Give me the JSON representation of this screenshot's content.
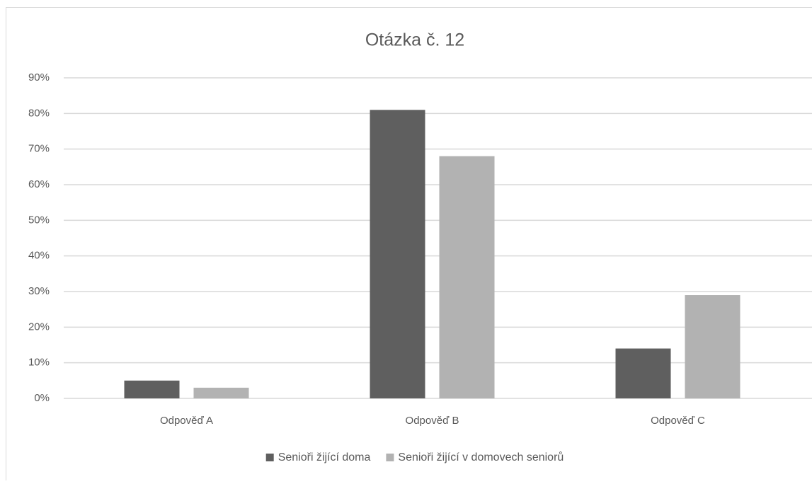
{
  "chart_data": {
    "type": "bar",
    "title": "Otázka č. 12",
    "categories": [
      "Odpověď A",
      "Odpověď B",
      "Odpověď C"
    ],
    "series": [
      {
        "name": "Senioři žijící doma",
        "color": "#5f5f5f",
        "values": [
          5,
          81,
          14
        ]
      },
      {
        "name": "Senioři žijící v domovech seniorů",
        "color": "#b2b2b2",
        "values": [
          3,
          68,
          29
        ]
      }
    ],
    "ylim": [
      0,
      90
    ],
    "yticks": [
      {
        "value": 0,
        "label": "0%"
      },
      {
        "value": 10,
        "label": "10%"
      },
      {
        "value": 20,
        "label": "20%"
      },
      {
        "value": 30,
        "label": "30%"
      },
      {
        "value": 40,
        "label": "40%"
      },
      {
        "value": 50,
        "label": "50%"
      },
      {
        "value": 60,
        "label": "60%"
      },
      {
        "value": 70,
        "label": "70%"
      },
      {
        "value": 80,
        "label": "80%"
      },
      {
        "value": 90,
        "label": "90%"
      }
    ],
    "grid": true,
    "legend": "bottom"
  }
}
